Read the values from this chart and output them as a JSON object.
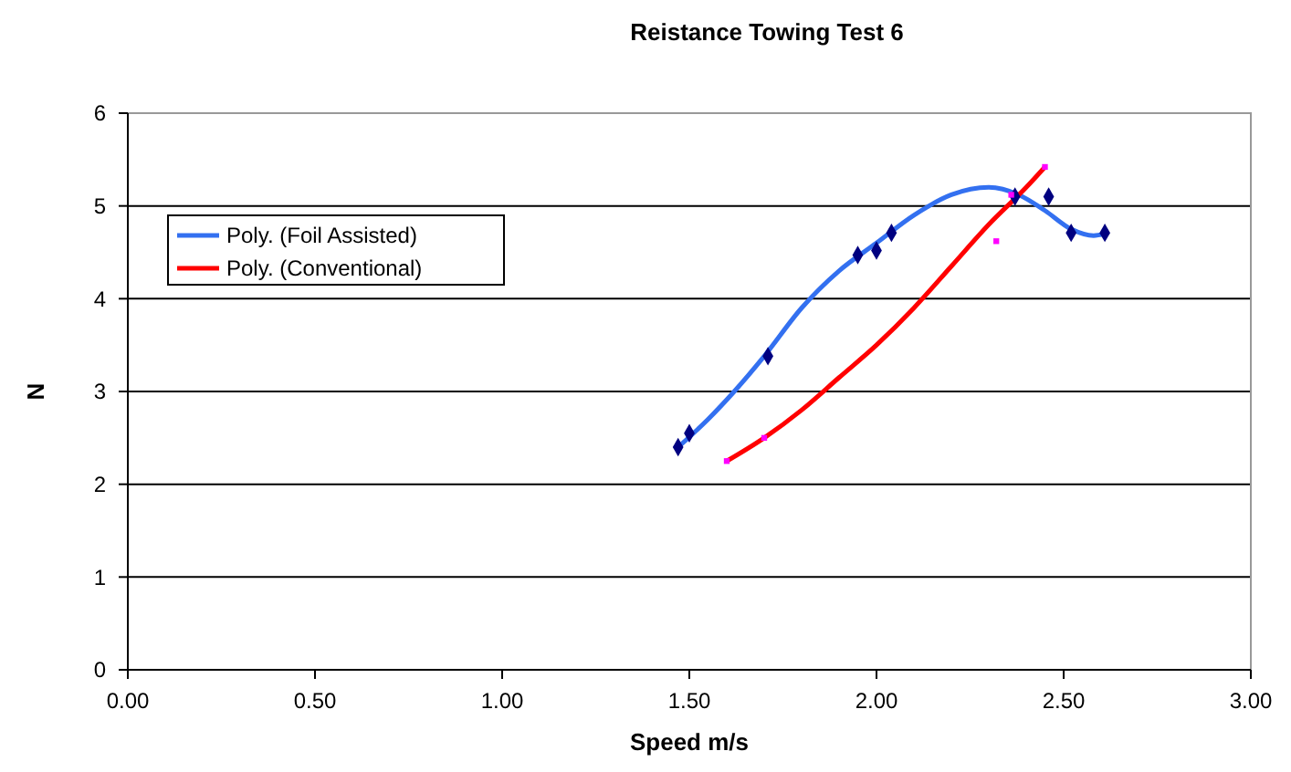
{
  "chart_data": {
    "type": "line",
    "title": "Reistance Towing Test 6",
    "xlabel": "Speed m/s",
    "ylabel": "N",
    "xlim": [
      0,
      3
    ],
    "xticks": [
      {
        "value": 0,
        "label": "0.00"
      },
      {
        "value": 0.5,
        "label": "0.50"
      },
      {
        "value": 1,
        "label": "1.00"
      },
      {
        "value": 1.5,
        "label": "1.50"
      },
      {
        "value": 2,
        "label": "2.00"
      },
      {
        "value": 2.5,
        "label": "2.50"
      },
      {
        "value": 3,
        "label": "3.00"
      }
    ],
    "ylim": [
      0,
      6
    ],
    "yticks": [
      0,
      1,
      2,
      3,
      4,
      5,
      6
    ],
    "grid": "y",
    "legend": "top left",
    "line_style": "solid",
    "series": [
      {
        "type": "scatter",
        "marker": "diamond",
        "color": "#000080",
        "x": [
          1.47,
          1.5,
          1.71,
          1.95,
          2.0,
          2.04,
          2.37,
          2.46,
          2.52,
          2.61
        ],
        "values": [
          2.4,
          2.55,
          3.38,
          4.47,
          4.52,
          4.71,
          5.1,
          5.1,
          4.71,
          4.71
        ]
      },
      {
        "type": "scatter",
        "marker": "square",
        "color": "#ff00ff",
        "x": [
          1.6,
          1.7,
          2.32,
          2.36,
          2.45
        ],
        "values": [
          2.25,
          2.5,
          4.62,
          5.12,
          5.42
        ]
      },
      {
        "name": "Poly. (Foil Assisted)",
        "color": "#3370f0",
        "x": [
          1.47,
          1.55,
          1.62,
          1.7,
          1.8,
          1.9,
          2.0,
          2.1,
          2.2,
          2.3,
          2.38,
          2.45,
          2.52,
          2.58,
          2.61
        ],
        "values": [
          2.4,
          2.7,
          3.0,
          3.38,
          3.9,
          4.3,
          4.6,
          4.9,
          5.12,
          5.2,
          5.12,
          4.95,
          4.75,
          4.68,
          4.7
        ]
      },
      {
        "name": "Poly. (Conventional)",
        "color": "#ff0000",
        "x": [
          1.6,
          1.7,
          1.8,
          1.9,
          2.0,
          2.1,
          2.2,
          2.3,
          2.4,
          2.45
        ],
        "values": [
          2.25,
          2.5,
          2.8,
          3.15,
          3.5,
          3.9,
          4.35,
          4.8,
          5.2,
          5.42
        ]
      }
    ]
  }
}
